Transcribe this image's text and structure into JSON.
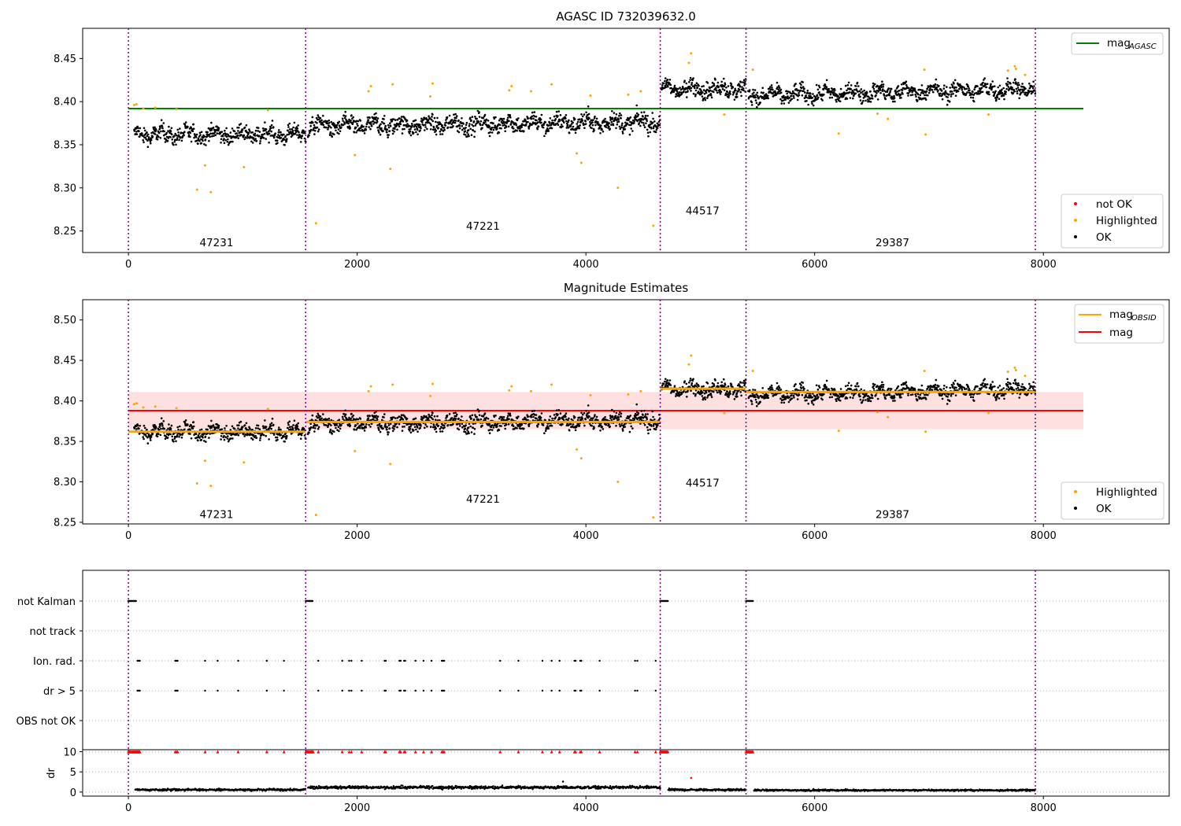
{
  "chart_data": [
    {
      "type": "scatter",
      "title": "AGASC ID 732039632.0",
      "xlim": [
        -400,
        9100
      ],
      "ylim": [
        8.225,
        8.485
      ],
      "xticks": [
        0,
        2000,
        4000,
        6000,
        8000
      ],
      "yticks": [
        8.25,
        8.3,
        8.35,
        8.4,
        8.45
      ],
      "obsid_boundaries": [
        0,
        1550,
        4650,
        5400,
        7930
      ],
      "obsids": [
        {
          "label": "47231",
          "x": 770,
          "y": 8.236
        },
        {
          "label": "47221",
          "x": 3100,
          "y": 8.255
        },
        {
          "label": "44517",
          "x": 5020,
          "y": 8.273
        },
        {
          "label": "29387",
          "x": 6680,
          "y": 8.236
        }
      ],
      "mag_agasc": 8.392,
      "mag_agasc_range": [
        0,
        8350
      ],
      "segments": [
        {
          "x0": 50,
          "x1": 1550,
          "mean": 8.362,
          "sd": 0.0085,
          "trend": 0.0
        },
        {
          "x0": 1570,
          "x1": 4650,
          "mean": 8.374,
          "sd": 0.0095,
          "trend": 0.005
        },
        {
          "x0": 4660,
          "x1": 5400,
          "mean": 8.415,
          "sd": 0.009,
          "trend": 0.0
        },
        {
          "x0": 5420,
          "x1": 7930,
          "mean": 8.411,
          "sd": 0.0085,
          "trend": 0.008
        }
      ],
      "highlighted_points": [
        [
          50,
          8.396
        ],
        [
          70,
          8.397
        ],
        [
          130,
          8.392
        ],
        [
          235,
          8.393
        ],
        [
          420,
          8.391
        ],
        [
          600,
          8.298
        ],
        [
          670,
          8.326
        ],
        [
          720,
          8.295
        ],
        [
          1010,
          8.324
        ],
        [
          1220,
          8.39
        ],
        [
          1640,
          8.259
        ],
        [
          1980,
          8.338
        ],
        [
          2100,
          8.412
        ],
        [
          2120,
          8.418
        ],
        [
          2290,
          8.322
        ],
        [
          2310,
          8.42
        ],
        [
          2640,
          8.406
        ],
        [
          2660,
          8.421
        ],
        [
          3330,
          8.413
        ],
        [
          3350,
          8.418
        ],
        [
          3520,
          8.412
        ],
        [
          3700,
          8.42
        ],
        [
          3920,
          8.34
        ],
        [
          3960,
          8.329
        ],
        [
          4040,
          8.407
        ],
        [
          4280,
          8.3
        ],
        [
          4370,
          8.408
        ],
        [
          4480,
          8.412
        ],
        [
          4590,
          8.256
        ],
        [
          4900,
          8.445
        ],
        [
          4920,
          8.456
        ],
        [
          5210,
          8.385
        ],
        [
          5460,
          8.437
        ],
        [
          6210,
          8.363
        ],
        [
          6550,
          8.386
        ],
        [
          6640,
          8.38
        ],
        [
          6960,
          8.437
        ],
        [
          6970,
          8.362
        ],
        [
          7520,
          8.385
        ],
        [
          7690,
          8.436
        ],
        [
          7750,
          8.441
        ],
        [
          7760,
          8.438
        ],
        [
          7840,
          8.431
        ]
      ],
      "legend_upper": [
        {
          "label": "mag",
          "subscript": "AGASC",
          "color": "#008000"
        }
      ],
      "legend_lower": [
        {
          "label": "not OK",
          "color": "#ff0000"
        },
        {
          "label": "Highlighted",
          "color": "#ffa500"
        },
        {
          "label": "OK",
          "color": "#000000"
        }
      ]
    },
    {
      "type": "scatter",
      "title": "Magnitude Estimates",
      "xlim": [
        -400,
        9100
      ],
      "ylim": [
        8.248,
        8.525
      ],
      "xticks": [
        0,
        2000,
        4000,
        6000,
        8000
      ],
      "yticks": [
        8.25,
        8.3,
        8.35,
        8.4,
        8.45,
        8.5
      ],
      "mag": 8.388,
      "mag_band": [
        8.365,
        8.411
      ],
      "mag_range": [
        0,
        8350
      ],
      "obsid_mags": [
        {
          "x0": 0,
          "x1": 1550,
          "mag": 8.362
        },
        {
          "x0": 1550,
          "x1": 4650,
          "mag": 8.374
        },
        {
          "x0": 4650,
          "x1": 5400,
          "mag": 8.415
        },
        {
          "x0": 5400,
          "x1": 7930,
          "mag": 8.411
        }
      ],
      "obsids": [
        {
          "label": "47231",
          "x": 770,
          "y": 8.259
        },
        {
          "label": "47221",
          "x": 3100,
          "y": 8.278
        },
        {
          "label": "44517",
          "x": 5020,
          "y": 8.298
        },
        {
          "label": "29387",
          "x": 6680,
          "y": 8.259
        }
      ],
      "legend_upper": [
        {
          "label": "mag",
          "subscript": "OBSID",
          "color": "#ffa500"
        },
        {
          "label": "mag",
          "subscript": "",
          "color": "#ff0000"
        }
      ],
      "legend_lower": [
        {
          "label": "Highlighted",
          "color": "#ffa500"
        },
        {
          "label": "OK",
          "color": "#000000"
        }
      ]
    },
    {
      "type": "scatter",
      "title": "",
      "xlim": [
        -400,
        9100
      ],
      "categories": [
        "not Kalman",
        "not track",
        "Ion. rad.",
        "dr > 5",
        "OBS not OK"
      ],
      "not_kalman_ranges": [
        [
          0,
          70
        ],
        [
          1550,
          1610
        ],
        [
          4650,
          4720
        ],
        [
          5400,
          5460
        ]
      ],
      "flag_times": [
        80,
        90,
        100,
        410,
        420,
        430,
        670,
        780,
        960,
        1210,
        1360,
        1660,
        1870,
        1930,
        1950,
        2040,
        2240,
        2250,
        2370,
        2380,
        2410,
        2420,
        2510,
        2580,
        2650,
        2740,
        2750,
        2760,
        3250,
        3410,
        3620,
        3700,
        3770,
        3900,
        3910,
        3950,
        3960,
        4120,
        4430,
        4450,
        4610
      ]
    },
    {
      "type": "scatter",
      "title": "",
      "ylabel": "dr",
      "xlim": [
        -400,
        9100
      ],
      "ylim": [
        -1,
        10.5
      ],
      "xticks": [
        0,
        2000,
        4000,
        6000,
        8000
      ],
      "yticks": [
        0,
        5,
        10
      ],
      "segments": [
        {
          "x0": 60,
          "x1": 1550,
          "mean": 0.55,
          "sd": 0.25
        },
        {
          "x0": 1570,
          "x1": 4650,
          "mean": 1.15,
          "sd": 0.35
        },
        {
          "x0": 4720,
          "x1": 5400,
          "mean": 0.55,
          "sd": 0.25
        },
        {
          "x0": 5470,
          "x1": 7930,
          "mean": 0.45,
          "sd": 0.2
        }
      ],
      "outliers": [
        [
          4920,
          3.5
        ],
        [
          3800,
          2.6
        ]
      ],
      "clipped_ranges": [
        [
          0,
          100
        ],
        [
          1550,
          1620
        ],
        [
          4650,
          4720
        ],
        [
          5400,
          5460
        ]
      ]
    }
  ]
}
